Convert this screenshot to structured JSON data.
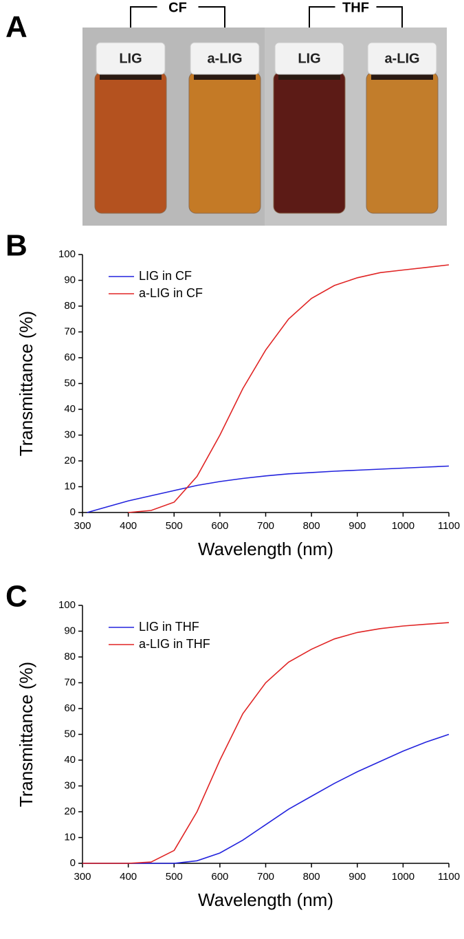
{
  "photo": {
    "label": "A",
    "groups": [
      "CF",
      "THF"
    ],
    "vials": [
      "LIG",
      "a-LIG",
      "LIG",
      "a-LIG"
    ]
  },
  "chart_data": [
    {
      "type": "line",
      "panel_label": "B",
      "x_label": "Wavelength (nm)",
      "y_label": "Transmittance (%)",
      "x": [
        310,
        350,
        400,
        450,
        500,
        550,
        600,
        650,
        700,
        750,
        800,
        850,
        900,
        950,
        1000,
        1050,
        1100
      ],
      "series": [
        {
          "name": "LIG in CF",
          "color": "#2222dd",
          "values": [
            0,
            2,
            4.5,
            6.5,
            8.5,
            10.5,
            12,
            13.2,
            14.2,
            15,
            15.5,
            16,
            16.4,
            16.8,
            17.2,
            17.6,
            18
          ]
        },
        {
          "name": "a-LIG in CF",
          "color": "#e02424",
          "values": [
            null,
            null,
            0,
            0.8,
            4,
            14,
            30,
            48,
            63,
            75,
            83,
            88,
            91,
            93,
            94,
            95,
            96
          ]
        }
      ],
      "xlim": [
        300,
        1100
      ],
      "ylim": [
        0,
        100
      ],
      "xticks": [
        300,
        400,
        500,
        600,
        700,
        800,
        900,
        1000,
        1100
      ],
      "yticks": [
        0,
        10,
        20,
        30,
        40,
        50,
        60,
        70,
        80,
        90,
        100
      ],
      "legend": "upper left"
    },
    {
      "type": "line",
      "panel_label": "C",
      "x_label": "Wavelength (nm)",
      "y_label": "Transmittance (%)",
      "x": [
        300,
        350,
        400,
        450,
        500,
        550,
        600,
        650,
        700,
        750,
        800,
        850,
        900,
        950,
        1000,
        1050,
        1100
      ],
      "series": [
        {
          "name": "LIG in THF",
          "color": "#2222dd",
          "values": [
            0,
            0,
            0,
            0,
            0,
            1,
            4,
            9,
            15,
            21,
            26,
            31,
            35.5,
            39.5,
            43.5,
            47,
            50
          ]
        },
        {
          "name": "a-LIG in THF",
          "color": "#e02424",
          "values": [
            0,
            0,
            0,
            0.5,
            5,
            20,
            40,
            58,
            70,
            78,
            83,
            87,
            89.5,
            91,
            92,
            92.7,
            93.3
          ]
        }
      ],
      "xlim": [
        300,
        1100
      ],
      "ylim": [
        0,
        100
      ],
      "xticks": [
        300,
        400,
        500,
        600,
        700,
        800,
        900,
        1000,
        1100
      ],
      "yticks": [
        0,
        10,
        20,
        30,
        40,
        50,
        60,
        70,
        80,
        90,
        100
      ],
      "legend": "upper left"
    }
  ]
}
